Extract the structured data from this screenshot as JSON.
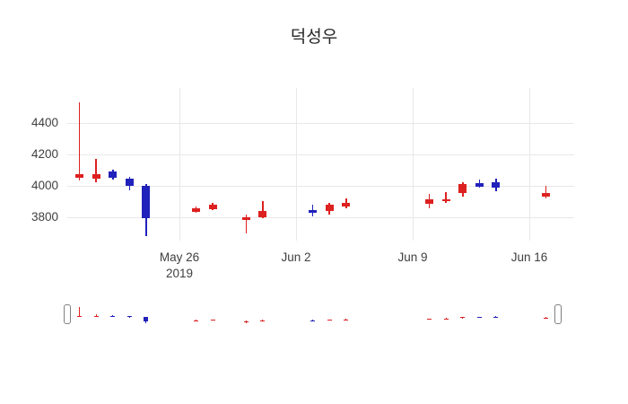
{
  "chart_data": {
    "type": "candlestick",
    "title": "덕성우",
    "x_base": "2019-05-20",
    "up_color": "#dd2020",
    "down_color": "#2121bb",
    "grid_color": "#e8e8e8",
    "tick_color": "#3f3f3f",
    "y_ticks": [
      3800,
      4000,
      4200,
      4400
    ],
    "y_range": [
      3650,
      4620
    ],
    "x_ticks": [
      {
        "date": "2019-05-26",
        "label": "May 26",
        "sublabel": "2019"
      },
      {
        "date": "2019-06-02",
        "label": "Jun 2",
        "sublabel": ""
      },
      {
        "date": "2019-06-09",
        "label": "Jun 9",
        "sublabel": ""
      },
      {
        "date": "2019-06-16",
        "label": "Jun 16",
        "sublabel": ""
      }
    ],
    "candles": [
      {
        "date": "2019-05-20",
        "open": 4050,
        "high": 4530,
        "low": 4030,
        "close": 4070
      },
      {
        "date": "2019-05-21",
        "open": 4045,
        "high": 4170,
        "low": 4020,
        "close": 4075
      },
      {
        "date": "2019-05-22",
        "open": 4090,
        "high": 4100,
        "low": 4040,
        "close": 4050
      },
      {
        "date": "2019-05-23",
        "open": 4045,
        "high": 4055,
        "low": 3970,
        "close": 4000
      },
      {
        "date": "2019-05-24",
        "open": 4000,
        "high": 4010,
        "low": 3680,
        "close": 3790
      },
      {
        "date": "2019-05-27",
        "open": 3835,
        "high": 3865,
        "low": 3825,
        "close": 3855
      },
      {
        "date": "2019-05-28",
        "open": 3850,
        "high": 3890,
        "low": 3845,
        "close": 3880
      },
      {
        "date": "2019-05-30",
        "open": 3780,
        "high": 3815,
        "low": 3695,
        "close": 3800
      },
      {
        "date": "2019-05-31",
        "open": 3800,
        "high": 3900,
        "low": 3790,
        "close": 3840
      },
      {
        "date": "2019-06-03",
        "open": 3845,
        "high": 3880,
        "low": 3805,
        "close": 3825
      },
      {
        "date": "2019-06-04",
        "open": 3840,
        "high": 3890,
        "low": 3815,
        "close": 3880
      },
      {
        "date": "2019-06-05",
        "open": 3865,
        "high": 3920,
        "low": 3855,
        "close": 3890
      },
      {
        "date": "2019-06-10",
        "open": 3885,
        "high": 3945,
        "low": 3855,
        "close": 3915
      },
      {
        "date": "2019-06-11",
        "open": 3900,
        "high": 3960,
        "low": 3890,
        "close": 3915
      },
      {
        "date": "2019-06-12",
        "open": 3950,
        "high": 4020,
        "low": 3930,
        "close": 4010
      },
      {
        "date": "2019-06-13",
        "open": 4015,
        "high": 4040,
        "low": 3985,
        "close": 3995
      },
      {
        "date": "2019-06-14",
        "open": 4020,
        "high": 4045,
        "low": 3965,
        "close": 3985
      },
      {
        "date": "2019-06-17",
        "open": 3930,
        "high": 4000,
        "low": 3920,
        "close": 3955
      }
    ]
  }
}
